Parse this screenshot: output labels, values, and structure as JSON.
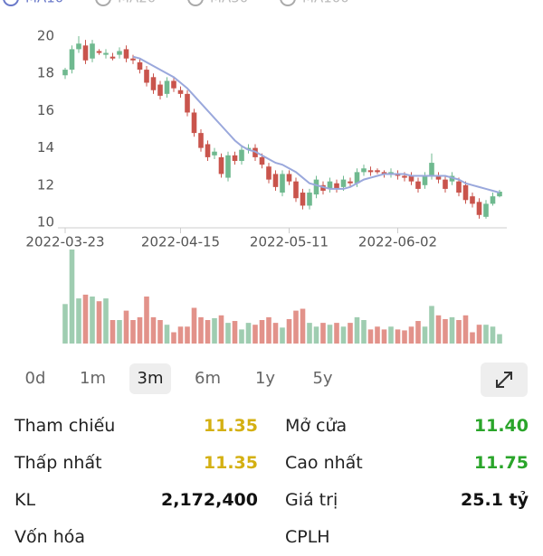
{
  "chart_data": {
    "type": "candlestick",
    "legend": [
      {
        "name": "MA10",
        "active": true
      },
      {
        "name": "MA20",
        "active": false
      },
      {
        "name": "MA50",
        "active": false
      },
      {
        "name": "MA100",
        "active": false
      }
    ],
    "categories": [
      "2022-03-23",
      null,
      null,
      null,
      null,
      null,
      null,
      null,
      null,
      null,
      null,
      null,
      null,
      null,
      null,
      null,
      null,
      "2022-04-15",
      null,
      null,
      null,
      null,
      null,
      null,
      null,
      null,
      null,
      null,
      null,
      null,
      null,
      null,
      null,
      "2022-05-11",
      null,
      null,
      null,
      null,
      null,
      null,
      null,
      null,
      null,
      null,
      null,
      null,
      null,
      null,
      null,
      "2022-06-02",
      null,
      null,
      null,
      null,
      null,
      null,
      null,
      null,
      null,
      null,
      null,
      null,
      null,
      null,
      null
    ],
    "open": [
      17.9,
      18.2,
      19.3,
      19.5,
      18.8,
      19.2,
      19.0,
      18.9,
      19.0,
      19.3,
      18.8,
      18.6,
      18.2,
      17.8,
      17.4,
      16.9,
      17.6,
      17.1,
      16.9,
      15.9,
      14.8,
      14.2,
      13.6,
      13.5,
      12.4,
      13.6,
      13.3,
      13.9,
      14.0,
      13.5,
      13.0,
      12.6,
      11.6,
      12.6,
      12.2,
      11.6,
      10.9,
      11.5,
      12.0,
      11.8,
      12.1,
      11.9,
      12.2,
      12.1,
      12.7,
      12.8,
      12.8,
      12.7,
      12.6,
      12.6,
      12.5,
      12.5,
      12.2,
      12.0,
      12.5,
      12.5,
      12.3,
      12.2,
      12.2,
      12.0,
      11.4,
      11.1,
      10.3,
      11.0,
      11.4
    ],
    "high": [
      18.3,
      19.5,
      20.0,
      19.8,
      19.8,
      19.3,
      19.3,
      19.1,
      19.4,
      19.5,
      19.0,
      18.8,
      18.4,
      18.0,
      17.6,
      17.8,
      17.8,
      17.3,
      17.1,
      16.1,
      15.0,
      14.4,
      14.0,
      13.7,
      13.8,
      13.8,
      14.1,
      14.2,
      14.2,
      13.7,
      13.2,
      12.8,
      12.8,
      12.8,
      12.4,
      11.8,
      11.8,
      12.5,
      12.2,
      12.4,
      12.3,
      12.5,
      12.4,
      12.9,
      13.1,
      13.0,
      12.9,
      12.8,
      12.9,
      12.8,
      12.7,
      12.7,
      12.4,
      12.7,
      13.7,
      12.7,
      12.5,
      12.7,
      12.4,
      12.2,
      11.6,
      11.3,
      11.2,
      11.6,
      11.75
    ],
    "low": [
      17.7,
      18.0,
      19.1,
      18.5,
      18.6,
      19.0,
      18.8,
      18.7,
      18.8,
      18.6,
      18.5,
      18.0,
      17.3,
      16.9,
      16.6,
      16.7,
      17.0,
      16.7,
      15.7,
      14.6,
      13.8,
      13.3,
      13.4,
      12.4,
      12.2,
      13.1,
      13.1,
      13.7,
      13.3,
      12.9,
      12.1,
      11.7,
      11.4,
      12.0,
      11.1,
      10.7,
      10.7,
      11.3,
      11.5,
      11.6,
      11.6,
      11.7,
      11.9,
      11.9,
      12.5,
      12.5,
      12.6,
      12.4,
      12.4,
      12.3,
      12.2,
      12.0,
      11.6,
      11.8,
      12.3,
      12.1,
      11.6,
      12.0,
      11.4,
      11.0,
      10.8,
      10.2,
      10.2,
      10.9,
      11.35
    ],
    "close": [
      18.2,
      19.3,
      19.6,
      18.7,
      19.6,
      19.1,
      19.1,
      18.8,
      19.2,
      18.8,
      18.7,
      18.2,
      17.5,
      17.1,
      16.8,
      17.6,
      17.2,
      16.9,
      15.9,
      14.8,
      14.0,
      13.5,
      13.8,
      12.6,
      13.6,
      13.3,
      13.9,
      14.0,
      13.5,
      13.1,
      12.3,
      11.9,
      12.6,
      12.2,
      11.3,
      10.9,
      11.6,
      12.3,
      11.7,
      12.2,
      11.8,
      12.3,
      12.1,
      12.7,
      12.9,
      12.7,
      12.7,
      12.6,
      12.7,
      12.5,
      12.4,
      12.2,
      11.8,
      12.5,
      13.2,
      12.3,
      11.8,
      12.5,
      11.6,
      11.2,
      11.0,
      10.4,
      11.0,
      11.4,
      11.65
    ],
    "up_color": "#6fb98f",
    "down_color": "#c9544c",
    "series": [
      {
        "name": "MA10",
        "color": "#9aa8dc",
        "values": [
          null,
          null,
          null,
          null,
          null,
          null,
          null,
          null,
          null,
          null,
          18.9,
          18.8,
          18.6,
          18.4,
          18.2,
          18.0,
          17.8,
          17.5,
          17.2,
          16.8,
          16.4,
          16.0,
          15.6,
          15.2,
          14.8,
          14.4,
          14.1,
          13.9,
          13.8,
          13.6,
          13.4,
          13.2,
          13.1,
          12.9,
          12.7,
          12.4,
          12.1,
          12.0,
          11.9,
          11.8,
          11.8,
          11.8,
          11.9,
          12.1,
          12.3,
          12.4,
          12.5,
          12.6,
          12.6,
          12.6,
          12.6,
          12.5,
          12.5,
          12.5,
          12.5,
          12.5,
          12.5,
          12.4,
          12.3,
          12.1,
          12.0,
          11.9,
          11.8,
          11.7,
          11.6
        ]
      }
    ],
    "ylim": [
      10,
      20
    ],
    "yticks": [
      10,
      12,
      14,
      16,
      18,
      20
    ],
    "volume": {
      "ylim": [
        0,
        100
      ],
      "up_color": "#9fcdb1",
      "down_color": "#e2928a",
      "values": [
        42,
        100,
        48,
        52,
        50,
        45,
        48,
        25,
        25,
        35,
        25,
        28,
        50,
        28,
        25,
        20,
        12,
        18,
        18,
        38,
        28,
        25,
        27,
        30,
        22,
        24,
        15,
        22,
        20,
        25,
        28,
        22,
        17,
        26,
        35,
        37,
        22,
        18,
        22,
        20,
        22,
        18,
        22,
        28,
        25,
        15,
        18,
        15,
        18,
        15,
        14,
        18,
        24,
        18,
        40,
        30,
        26,
        28,
        25,
        30,
        12,
        20,
        20,
        18,
        10
      ]
    }
  },
  "periods": {
    "items": [
      "0d",
      "1m",
      "3m",
      "6m",
      "1y",
      "5y"
    ],
    "selected": "3m"
  },
  "stats": [
    [
      {
        "label": "Tham chiếu",
        "value": "11.35",
        "color": "#d4b012"
      },
      {
        "label": "Mở cửa",
        "value": "11.40",
        "color": "#2aa52a"
      }
    ],
    [
      {
        "label": "Thấp nhất",
        "value": "11.35",
        "color": "#d4b012"
      },
      {
        "label": "Cao nhất",
        "value": "11.75",
        "color": "#2aa52a"
      }
    ],
    [
      {
        "label": "KL",
        "value": "2,172,400",
        "color": "#111111"
      },
      {
        "label": "Giá trị",
        "value": "25.1 tỷ",
        "color": "#111111"
      }
    ],
    [
      {
        "label": "Vốn hóa"
      },
      {
        "label": "CPLH"
      }
    ]
  ]
}
